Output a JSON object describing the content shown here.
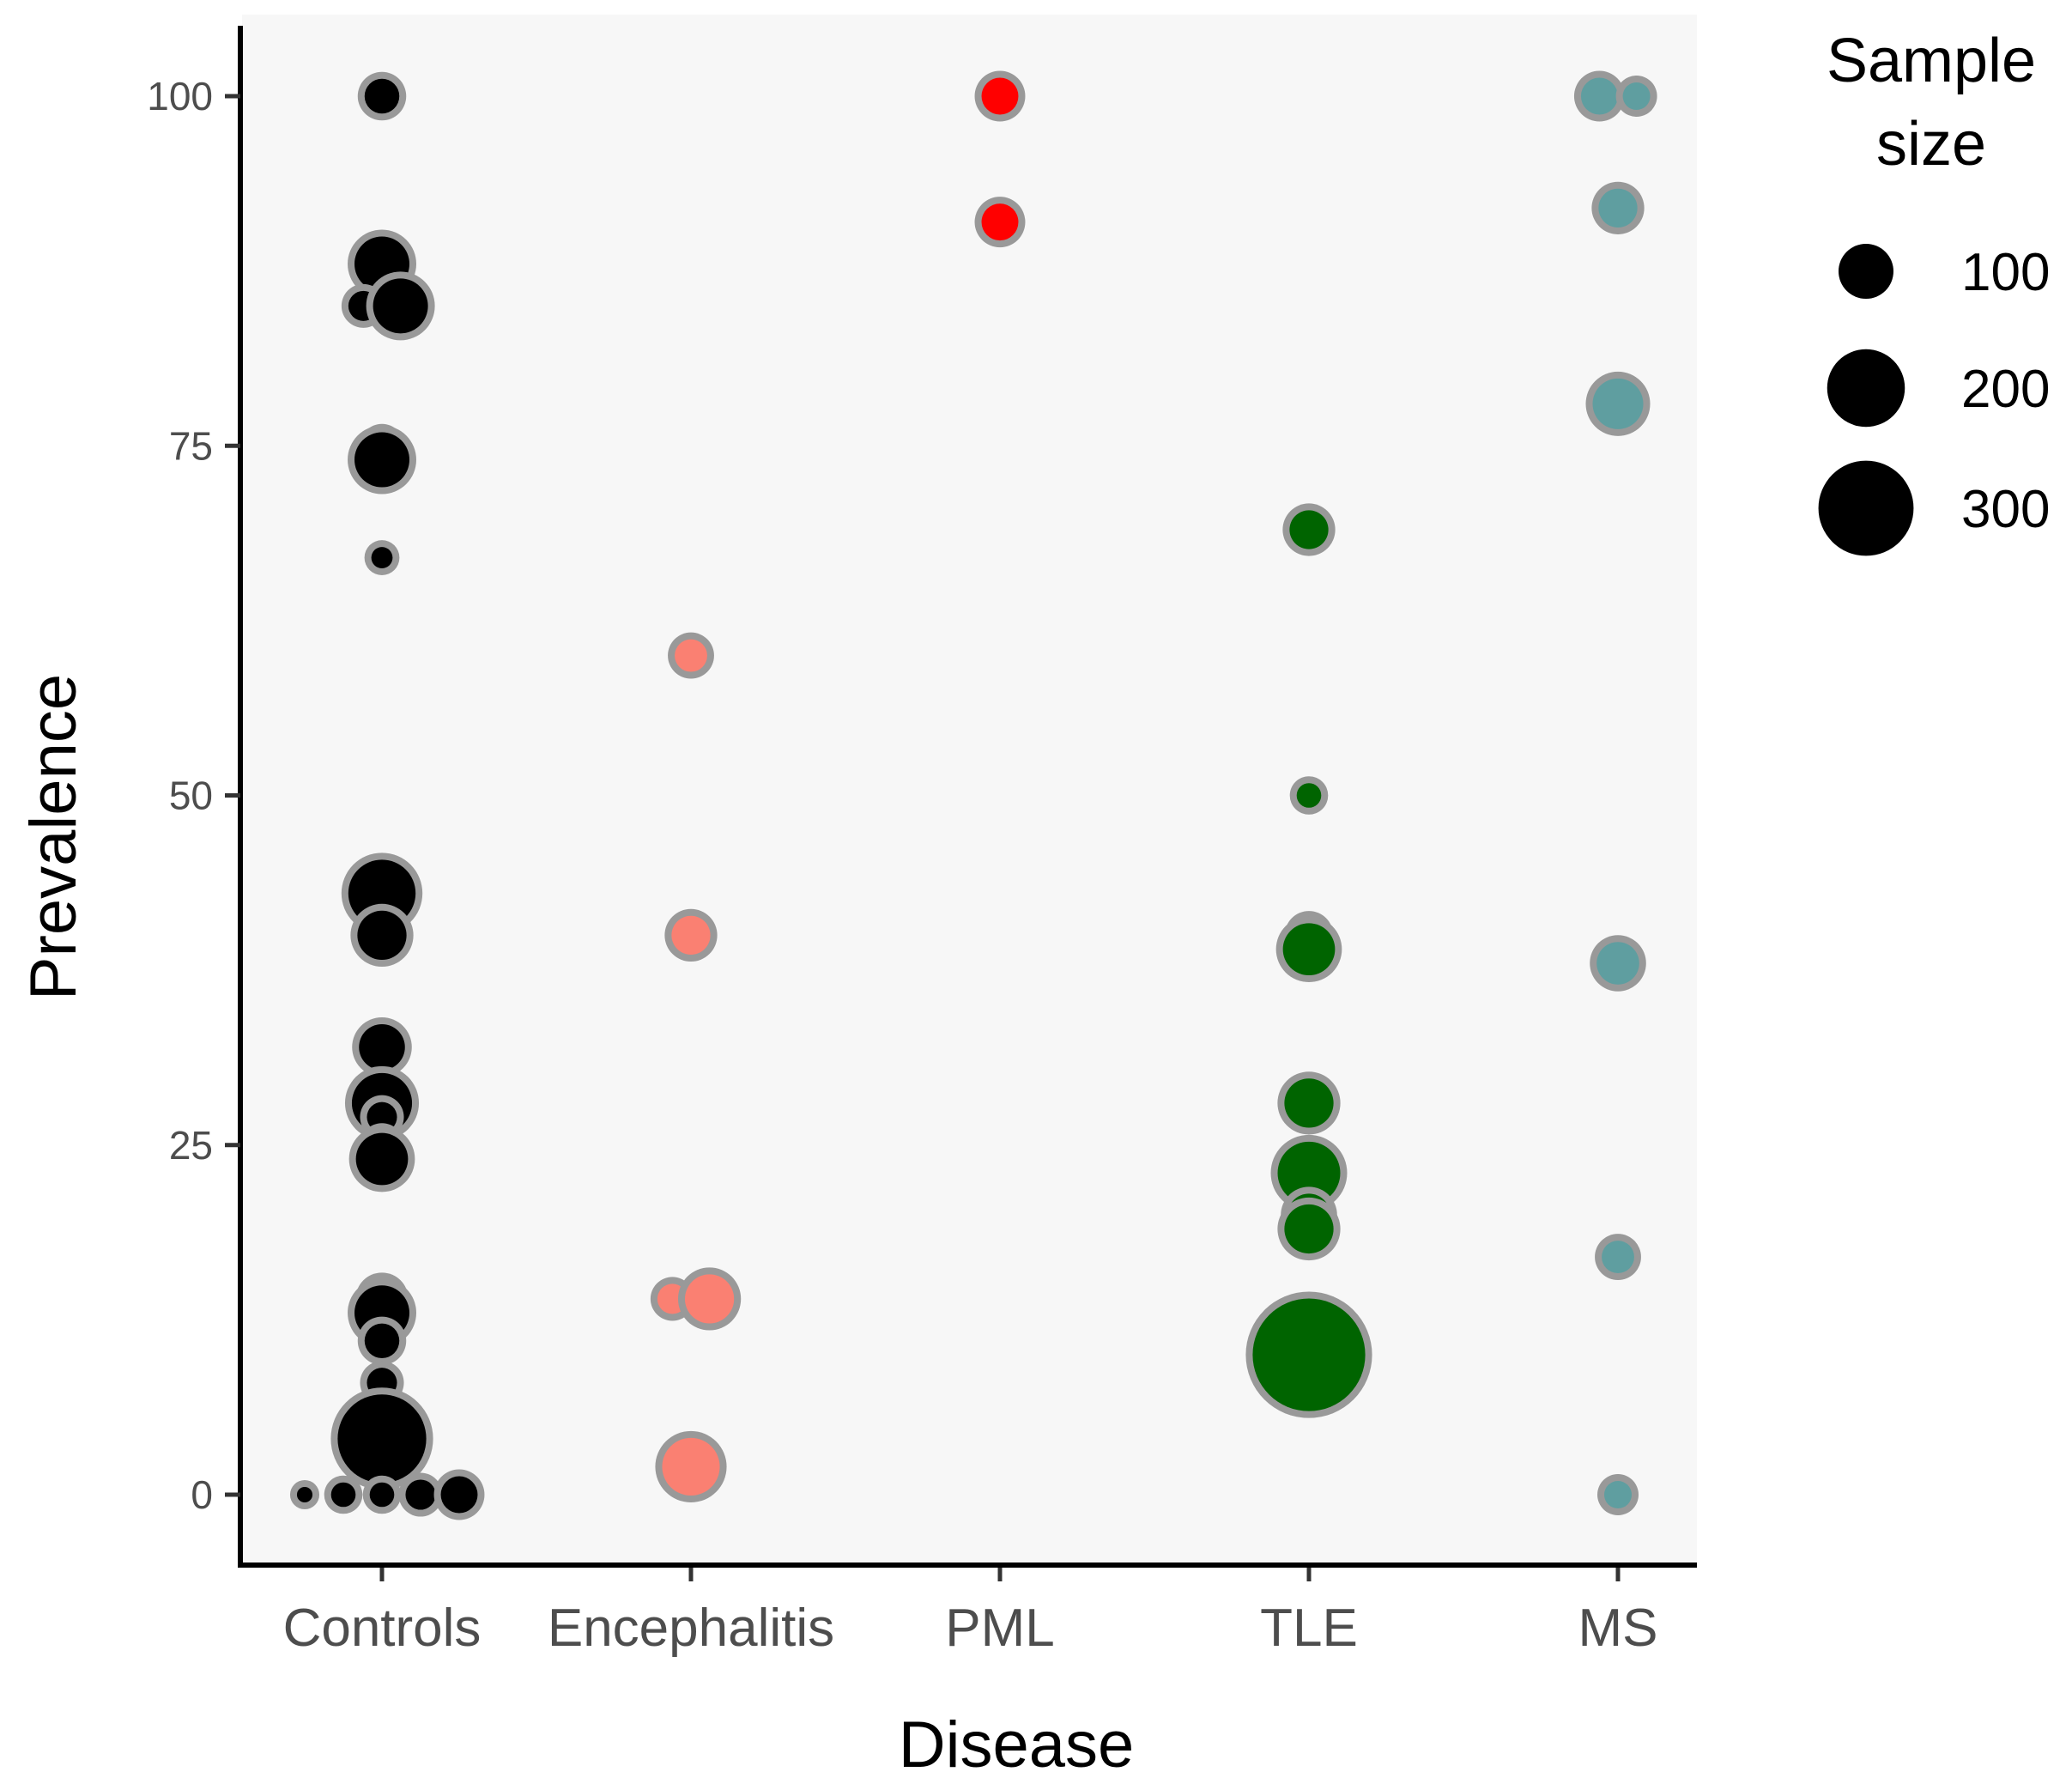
{
  "chart_data": {
    "type": "scatter",
    "xlabel": "Disease",
    "ylabel": "Prevalence",
    "categories": [
      "Controls",
      "Encephalitis",
      "PML",
      "TLE",
      "MS"
    ],
    "ylim": [
      -5,
      105
    ],
    "yticks": [
      0,
      25,
      50,
      75,
      100
    ],
    "grid": false,
    "legend": {
      "title_lines": [
        "Sample",
        "size"
      ],
      "placement": "right",
      "entries": [
        {
          "label": "100",
          "size": 100
        },
        {
          "label": "200",
          "size": 200
        },
        {
          "label": "300",
          "size": 300
        }
      ]
    },
    "colors": {
      "Controls": "#000000",
      "Encephalitis": "#fa8072",
      "PML": "#ff0000",
      "TLE": "#006400",
      "MS": "#5f9ea0",
      "outline": "#999999",
      "panel": "#f7f7f7"
    },
    "series": [
      {
        "category": "Controls",
        "points": [
          {
            "x": 0,
            "y": 100,
            "size": 40
          },
          {
            "x": 0,
            "y": 88,
            "size": 100
          },
          {
            "x": -0.06,
            "y": 85,
            "size": 30
          },
          {
            "x": 0.06,
            "y": 85,
            "size": 100
          },
          {
            "x": 0,
            "y": 75,
            "size": 30
          },
          {
            "x": 0,
            "y": 74,
            "size": 100
          },
          {
            "x": 0,
            "y": 67,
            "size": 15
          },
          {
            "x": 0,
            "y": 43,
            "size": 150
          },
          {
            "x": 0,
            "y": 40,
            "size": 80
          },
          {
            "x": 0,
            "y": 32,
            "size": 70
          },
          {
            "x": 0,
            "y": 28,
            "size": 120
          },
          {
            "x": 0,
            "y": 27,
            "size": 30
          },
          {
            "x": 0,
            "y": 25,
            "size": 30
          },
          {
            "x": 0,
            "y": 24,
            "size": 90
          },
          {
            "x": 0,
            "y": 14,
            "size": 50
          },
          {
            "x": 0,
            "y": 13,
            "size": 100
          },
          {
            "x": 0,
            "y": 11,
            "size": 40
          },
          {
            "x": 0,
            "y": 8,
            "size": 30
          },
          {
            "x": 0,
            "y": 4,
            "size": 260
          },
          {
            "x": -0.25,
            "y": 0,
            "size": 8
          },
          {
            "x": -0.125,
            "y": 0,
            "size": 20
          },
          {
            "x": 0,
            "y": 0,
            "size": 20
          },
          {
            "x": 0.125,
            "y": 0,
            "size": 30
          },
          {
            "x": 0.25,
            "y": 0,
            "size": 45
          }
        ]
      },
      {
        "category": "Encephalitis",
        "points": [
          {
            "x": 1,
            "y": 60,
            "size": 35
          },
          {
            "x": 1,
            "y": 40,
            "size": 50
          },
          {
            "x": 0.94,
            "y": 14,
            "size": 30
          },
          {
            "x": 1.06,
            "y": 14,
            "size": 80
          },
          {
            "x": 1,
            "y": 2,
            "size": 110
          }
        ]
      },
      {
        "category": "PML",
        "points": [
          {
            "x": 2,
            "y": 100,
            "size": 45
          },
          {
            "x": 2,
            "y": 91,
            "size": 45
          }
        ]
      },
      {
        "category": "TLE",
        "points": [
          {
            "x": 3,
            "y": 69,
            "size": 50
          },
          {
            "x": 3,
            "y": 50,
            "size": 20
          },
          {
            "x": 3,
            "y": 40,
            "size": 40
          },
          {
            "x": 3,
            "y": 39,
            "size": 90
          },
          {
            "x": 3,
            "y": 28,
            "size": 80
          },
          {
            "x": 3,
            "y": 23,
            "size": 130
          },
          {
            "x": 3,
            "y": 20,
            "size": 60
          },
          {
            "x": 3,
            "y": 19,
            "size": 80
          },
          {
            "x": 3,
            "y": 10,
            "size": 420
          }
        ]
      },
      {
        "category": "MS",
        "points": [
          {
            "x": 3.94,
            "y": 100,
            "size": 45
          },
          {
            "x": 4.06,
            "y": 100,
            "size": 25
          },
          {
            "x": 4,
            "y": 92,
            "size": 50
          },
          {
            "x": 4,
            "y": 78,
            "size": 85
          },
          {
            "x": 4,
            "y": 38,
            "size": 60
          },
          {
            "x": 4,
            "y": 17,
            "size": 35
          },
          {
            "x": 4,
            "y": 0,
            "size": 25
          }
        ]
      }
    ]
  }
}
